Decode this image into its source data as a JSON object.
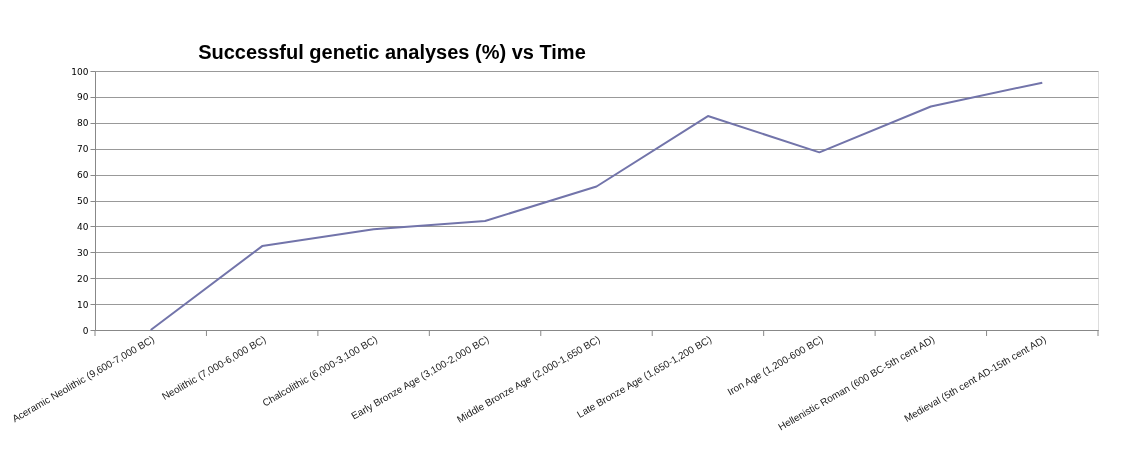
{
  "chart_data": {
    "type": "line",
    "title": "Successful genetic analyses (%) vs Time",
    "categories": [
      "Aceramic Neolithic (9,600-7,000 BC)",
      "Neolithic (7,000-6,000 BC)",
      "Chalcolithic (6,000-3,100 BC)",
      "Early Bronze Age (3,100-2,000 BC)",
      "Middle Bronze Age (2,000-1,650 BC)",
      "Late Bronze Age (1,650-1,200 BC)",
      "Iron Age (1,200-600 BC)",
      "Hellenistic Roman (600 BC-5th cent AD)",
      "Medieval (5th cent AD-15th cent AD)"
    ],
    "series": [
      {
        "color": "#7274aa",
        "values": [
          0,
          32.4,
          38.9,
          42.1,
          55.4,
          82.6,
          68.6,
          86.3,
          95.5
        ]
      }
    ],
    "ylim": [
      0,
      100
    ],
    "yticks": [
      0,
      10,
      20,
      30,
      40,
      50,
      60,
      70,
      80,
      90,
      100
    ],
    "grid": "y",
    "marker": "none",
    "line_style": "solid"
  }
}
